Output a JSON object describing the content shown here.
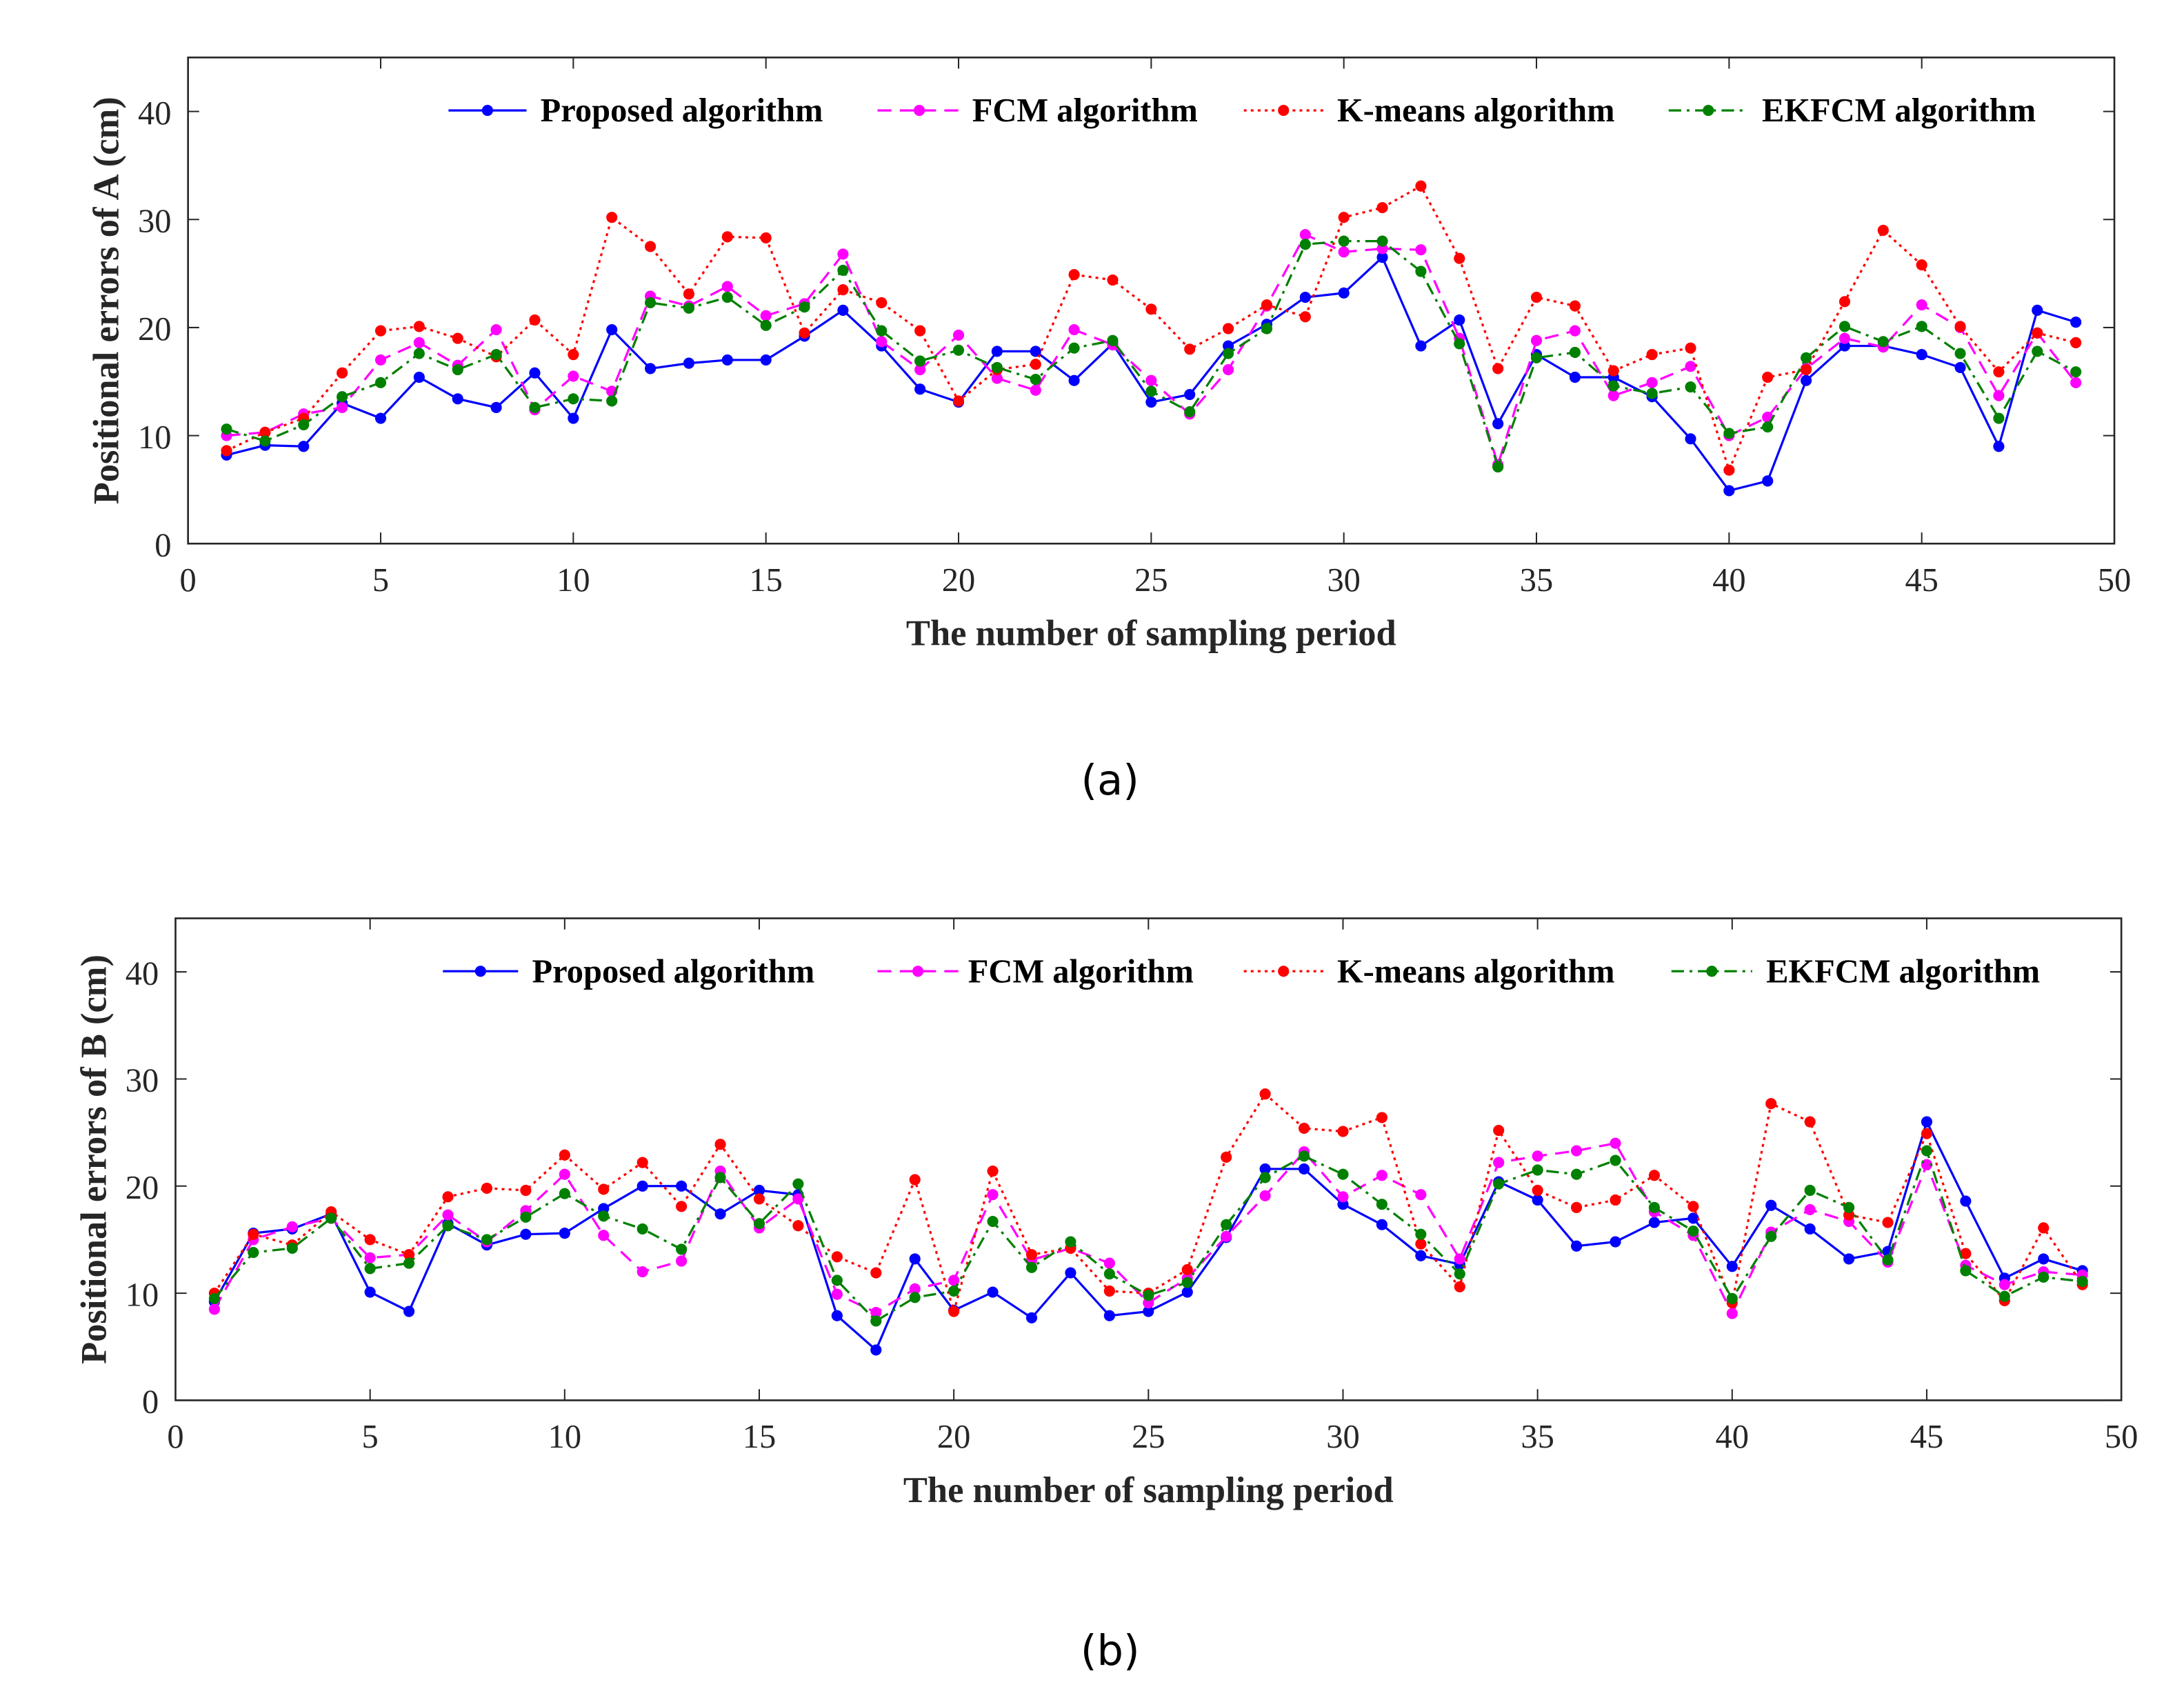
{
  "chart_data": [
    {
      "type": "line",
      "caption": "(a)",
      "xlabel": "The number of sampling period",
      "ylabel": "Positional errors of A (cm)",
      "xlim": [
        0,
        50
      ],
      "ylim": [
        0,
        45
      ],
      "xticks": [
        "0",
        "5",
        "10",
        "15",
        "20",
        "25",
        "30",
        "35",
        "40",
        "45",
        "50"
      ],
      "yticks": [
        "0",
        "10",
        "20",
        "30",
        "40"
      ],
      "legend_position": "top-right",
      "x": [
        1,
        2,
        3,
        4,
        5,
        6,
        7,
        8,
        9,
        10,
        11,
        12,
        13,
        14,
        15,
        16,
        17,
        18,
        19,
        20,
        21,
        22,
        23,
        24,
        25,
        26,
        27,
        28,
        29,
        30,
        31,
        32,
        33,
        34,
        35,
        36,
        37,
        38,
        39,
        40,
        41,
        42,
        43,
        44,
        45,
        46,
        47,
        48,
        49
      ],
      "series": [
        {
          "name": "Proposed algorithm",
          "color": "#0000ff",
          "style": "solid",
          "values": [
            8.2,
            9.1,
            9.0,
            13.0,
            11.6,
            15.4,
            13.4,
            12.6,
            15.8,
            11.6,
            19.8,
            16.2,
            16.7,
            17.0,
            17.0,
            19.2,
            21.6,
            18.3,
            14.3,
            13.1,
            17.8,
            17.8,
            15.1,
            18.5,
            13.1,
            13.8,
            18.3,
            20.3,
            22.8,
            23.2,
            26.5,
            18.3,
            20.7,
            11.1,
            17.5,
            15.4,
            15.4,
            13.6,
            9.7,
            4.9,
            5.8,
            15.1,
            18.3,
            18.3,
            17.5,
            16.3,
            9.0,
            21.6,
            20.5
          ]
        },
        {
          "name": "FCM algorithm",
          "color": "#ff00ff",
          "style": "dashed",
          "values": [
            10.0,
            10.3,
            12.0,
            12.6,
            17.0,
            18.6,
            16.5,
            19.8,
            12.4,
            15.5,
            14.1,
            22.9,
            22.0,
            23.8,
            21.1,
            22.2,
            26.8,
            18.7,
            16.1,
            19.3,
            15.3,
            14.2,
            19.8,
            18.4,
            15.1,
            12.0,
            16.1,
            22.0,
            28.6,
            27.0,
            27.3,
            27.2,
            19.0,
            7.3,
            18.8,
            19.7,
            13.7,
            14.9,
            16.4,
            10.0,
            11.7,
            16.2,
            19.0,
            18.2,
            22.1,
            20.0,
            13.7,
            19.5,
            14.9
          ]
        },
        {
          "name": "K-means algorithm",
          "color": "#ff0000",
          "style": "dotted",
          "values": [
            8.6,
            10.3,
            11.6,
            15.8,
            19.7,
            20.1,
            19.0,
            17.3,
            20.7,
            17.5,
            30.2,
            27.5,
            23.1,
            28.4,
            28.3,
            19.5,
            23.5,
            22.3,
            19.7,
            13.2,
            16.1,
            16.6,
            24.9,
            24.4,
            21.7,
            18.0,
            19.9,
            22.1,
            21.0,
            30.2,
            31.1,
            33.1,
            26.4,
            16.2,
            22.8,
            22.0,
            16.0,
            17.5,
            18.1,
            6.8,
            15.4,
            16.1,
            22.4,
            29.0,
            25.8,
            20.1,
            15.9,
            19.5,
            18.6
          ]
        },
        {
          "name": "EKFCM algorithm",
          "color": "#008000",
          "style": "dashdot",
          "values": [
            10.6,
            9.5,
            11.0,
            13.6,
            14.9,
            17.6,
            16.1,
            17.5,
            12.6,
            13.4,
            13.2,
            22.3,
            21.8,
            22.8,
            20.2,
            21.9,
            25.3,
            19.7,
            16.9,
            17.9,
            16.3,
            15.2,
            18.1,
            18.8,
            14.1,
            12.2,
            17.6,
            19.9,
            27.7,
            28.0,
            28.0,
            25.2,
            18.5,
            7.1,
            17.2,
            17.7,
            14.6,
            13.9,
            14.5,
            10.2,
            10.8,
            17.2,
            20.1,
            18.7,
            20.1,
            17.6,
            11.6,
            17.8,
            15.9
          ]
        }
      ]
    },
    {
      "type": "line",
      "caption": "(b)",
      "xlabel": "The number of sampling period",
      "ylabel": "Positional errors of B (cm)",
      "xlim": [
        0,
        50
      ],
      "ylim": [
        0,
        45
      ],
      "xticks": [
        "0",
        "5",
        "10",
        "15",
        "20",
        "25",
        "30",
        "35",
        "40",
        "45",
        "50"
      ],
      "yticks": [
        "0",
        "10",
        "20",
        "30",
        "40"
      ],
      "legend_position": "top-right",
      "x": [
        1,
        2,
        3,
        4,
        5,
        6,
        7,
        8,
        9,
        10,
        11,
        12,
        13,
        14,
        15,
        16,
        17,
        18,
        19,
        20,
        21,
        22,
        23,
        24,
        25,
        26,
        27,
        28,
        29,
        30,
        31,
        32,
        33,
        34,
        35,
        36,
        37,
        38,
        39,
        40,
        41,
        42,
        43,
        44,
        45,
        46,
        47,
        48,
        49
      ],
      "series": [
        {
          "name": "Proposed algorithm",
          "color": "#0000ff",
          "style": "solid",
          "values": [
            9.2,
            15.6,
            16.0,
            17.4,
            10.1,
            8.3,
            16.5,
            14.5,
            15.5,
            15.6,
            17.9,
            20.0,
            20.0,
            17.4,
            19.6,
            19.2,
            7.9,
            4.7,
            13.2,
            8.4,
            10.1,
            7.7,
            11.9,
            7.9,
            8.3,
            10.1,
            15.2,
            21.6,
            21.6,
            18.3,
            16.4,
            13.5,
            12.7,
            20.4,
            18.7,
            14.4,
            14.8,
            16.6,
            17.0,
            12.5,
            18.2,
            16.0,
            13.2,
            13.9,
            26.0,
            18.6,
            11.4,
            13.2,
            12.1
          ]
        },
        {
          "name": "FCM algorithm",
          "color": "#ff00ff",
          "style": "dashed",
          "values": [
            8.5,
            15.0,
            16.2,
            17.0,
            13.3,
            13.6,
            17.3,
            14.8,
            17.7,
            21.1,
            15.4,
            12.0,
            13.0,
            21.4,
            16.1,
            18.8,
            9.9,
            8.2,
            10.4,
            11.2,
            19.2,
            13.1,
            14.2,
            12.8,
            9.1,
            11.4,
            15.3,
            19.1,
            23.2,
            19.0,
            21.0,
            19.2,
            13.2,
            22.2,
            22.8,
            23.3,
            24.0,
            17.6,
            15.4,
            8.1,
            15.7,
            17.8,
            16.7,
            12.9,
            22.0,
            12.6,
            10.8,
            12.0,
            11.7
          ]
        },
        {
          "name": "K-means algorithm",
          "color": "#ff0000",
          "style": "dotted",
          "values": [
            10.0,
            15.5,
            14.5,
            17.6,
            15.0,
            13.6,
            19.0,
            19.8,
            19.6,
            22.9,
            19.7,
            22.2,
            18.1,
            23.9,
            18.8,
            16.3,
            13.4,
            11.9,
            20.6,
            8.3,
            21.4,
            13.6,
            14.2,
            10.2,
            10.0,
            12.2,
            22.7,
            28.6,
            25.4,
            25.1,
            26.4,
            14.6,
            10.6,
            25.2,
            19.6,
            18.0,
            18.7,
            21.0,
            18.1,
            9.1,
            27.7,
            26.0,
            17.3,
            16.6,
            24.9,
            13.7,
            9.3,
            16.1,
            10.8
          ]
        },
        {
          "name": "EKFCM algorithm",
          "color": "#008000",
          "style": "dashdot",
          "values": [
            9.5,
            13.8,
            14.2,
            17.0,
            12.3,
            12.8,
            16.3,
            15.0,
            17.1,
            19.3,
            17.2,
            16.0,
            14.1,
            20.8,
            16.5,
            20.2,
            11.2,
            7.4,
            9.6,
            10.2,
            16.7,
            12.4,
            14.8,
            11.8,
            9.8,
            11.0,
            16.4,
            20.8,
            22.8,
            21.1,
            18.3,
            15.5,
            11.8,
            20.2,
            21.5,
            21.1,
            22.4,
            18.0,
            15.8,
            9.5,
            15.3,
            19.6,
            18.0,
            13.1,
            23.3,
            12.1,
            9.7,
            11.5,
            11.1
          ]
        }
      ]
    }
  ]
}
